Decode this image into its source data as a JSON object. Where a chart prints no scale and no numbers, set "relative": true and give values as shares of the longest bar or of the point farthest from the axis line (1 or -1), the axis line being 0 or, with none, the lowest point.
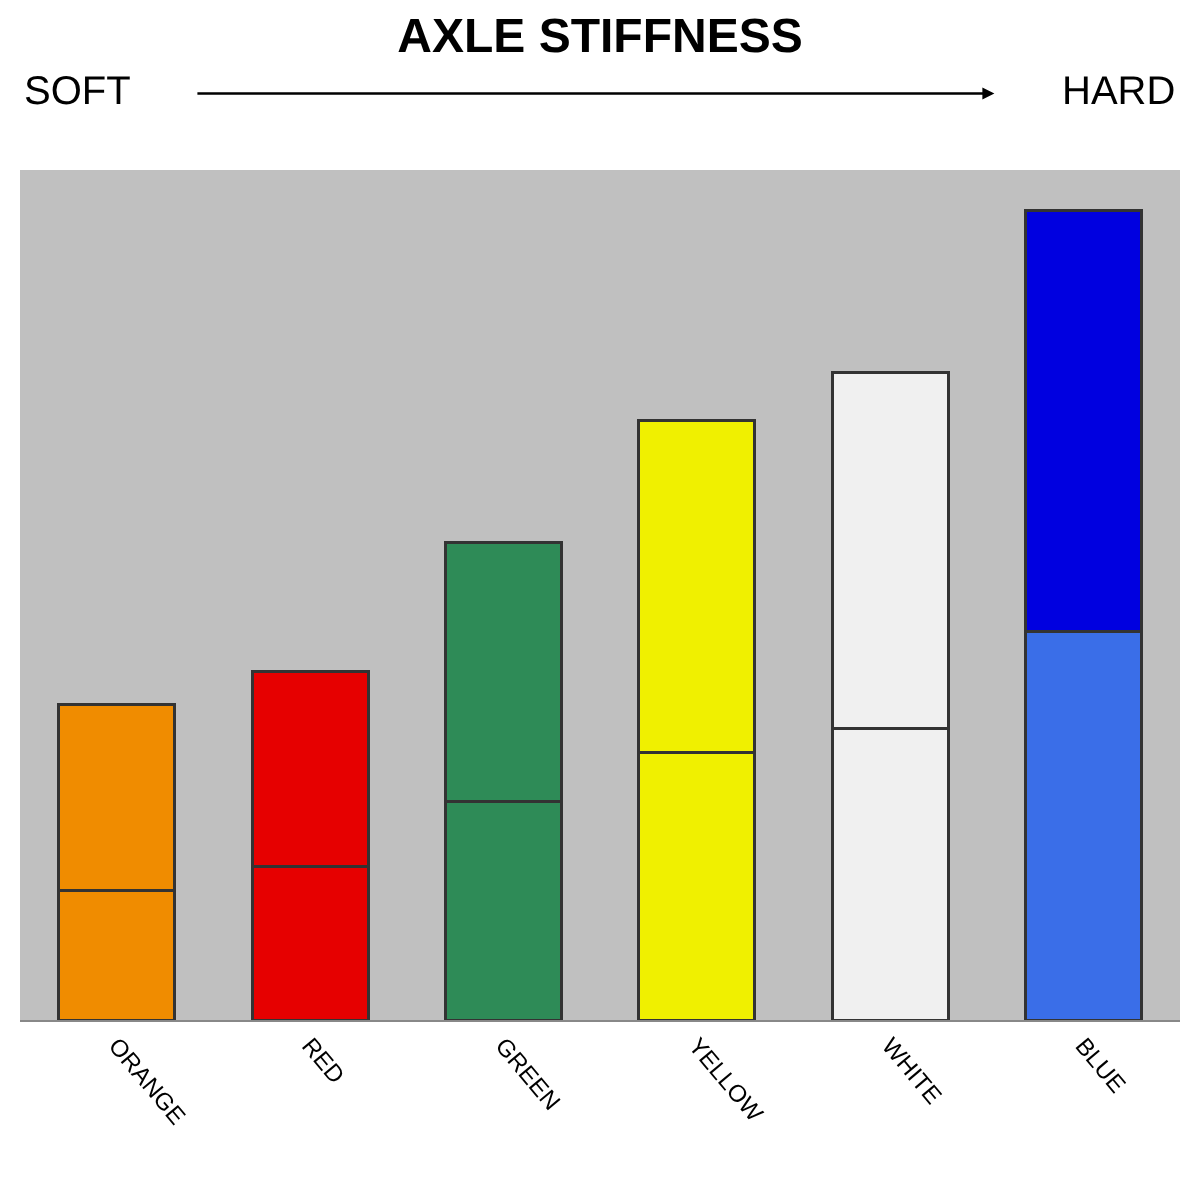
{
  "chart_data": {
    "type": "bar",
    "title": "AXLE STIFFNESS",
    "categories": [
      "ORANGE",
      "RED",
      "GREEN",
      "YELLOW",
      "WHITE",
      "BLUE"
    ],
    "series": [
      {
        "colors": [
          "#f08c00",
          "#e60000",
          "#2e8b57",
          "#f0f000",
          "#f0f0f0",
          "#3a6ee8"
        ],
        "values": [
          0.16,
          0.19,
          0.27,
          0.33,
          0.36,
          0.48
        ]
      },
      {
        "colors": [
          "#f08c00",
          "#e60000",
          "#2e8b57",
          "#f0f000",
          "#f0f0f0",
          "#0000e0"
        ],
        "values": [
          0.23,
          0.24,
          0.32,
          0.41,
          0.44,
          0.52
        ]
      }
    ],
    "stacked": true,
    "relative": true,
    "tick_labels": "x",
    "annotations": [
      "SOFT",
      "HARD"
    ]
  }
}
